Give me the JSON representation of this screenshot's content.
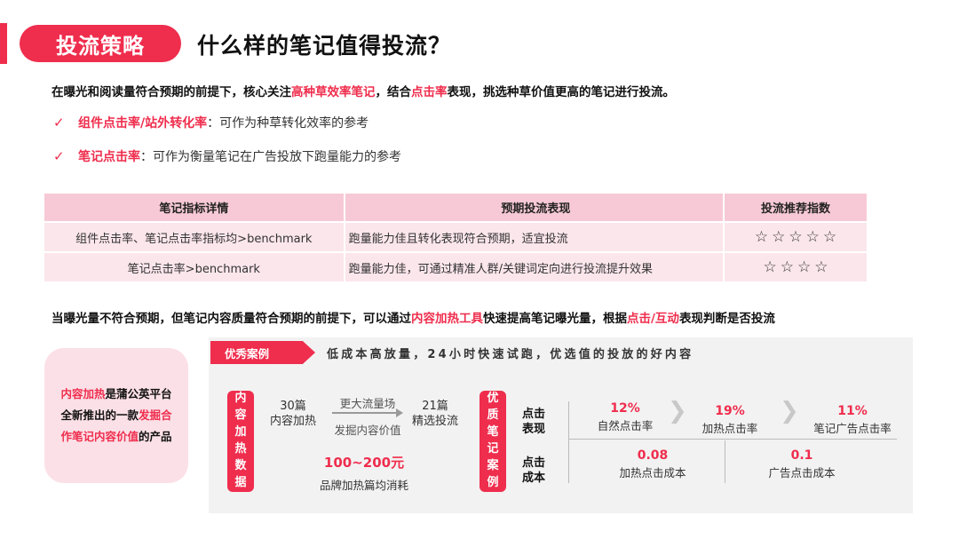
{
  "header": {
    "tag": "投流策略",
    "title": "什么样的笔记值得投流？"
  },
  "intro": {
    "part1": "在曝光和阅读量符合预期的前提下，核心关注",
    "highlight1": "高种草效率笔记",
    "part2": "，结合",
    "highlight2": "点击率",
    "part3": "表现，挑选种草价值更高的笔记进行投流。"
  },
  "checks": [
    {
      "icon": "✓",
      "term": "组件点击率/站外转化率",
      "desc": "：可作为种草转化效率的参考"
    },
    {
      "icon": "✓",
      "term": "笔记点击率",
      "desc": "：可作为衡量笔记在广告投放下跑量能力的参考"
    }
  ],
  "table": {
    "headers": [
      "笔记指标详情",
      "预期投流表现",
      "投流推荐指数"
    ],
    "rows": [
      {
        "metric": "组件点击率、笔记点击率指标均>benchmark",
        "expect": "跑量能力佳且转化表现符合预期，适宜投流",
        "stars": 5
      },
      {
        "metric": "笔记点击率>benchmark",
        "expect": "跑量能力佳，可通过精准人群/关键词定向进行投流提升效果",
        "stars": 4
      }
    ]
  },
  "second_lead": {
    "part1": "当曝光量不符合预期，但笔记内容质量符合预期的前提下，可以通过",
    "highlight1": "内容加热工具",
    "part2": "快速提高笔记曝光量，根据",
    "highlight2": "点击/互动",
    "part3": "表现判断是否投流"
  },
  "side_card": {
    "hl1": "内容加热",
    "t1": "是蒲公英平台",
    "t2": "全新推出的一款",
    "hl2": "发掘合",
    "hl3": "作笔记内容价值",
    "t3": "的产品"
  },
  "case": {
    "tag": "优秀案例",
    "slogan": "低成本高放量，24小时快速试跑，优选值的投放的好内容",
    "heat_label": "内容加热数据",
    "count_from": "30篇",
    "count_from_label": "内容加热",
    "arrow_top": "更大流量场",
    "arrow_bottom": "发掘内容价值",
    "count_to": "21篇",
    "count_to_label": "精选投流",
    "cost_range": "100~200元",
    "cost_label": "品牌加热篇均消耗",
    "quality_label": "优质笔记案例",
    "click_label_1": "点击",
    "click_label_2": "表现",
    "cost_row_label_1": "点击",
    "cost_row_label_2": "成本",
    "rates": [
      {
        "value": "12%",
        "label": "自然点击率"
      },
      {
        "value": "19%",
        "label": "加热点击率"
      },
      {
        "value": "11%",
        "label": "笔记广告点击率"
      }
    ],
    "costs": [
      {
        "value": "0.08",
        "label": "加热点击成本"
      },
      {
        "value": "0.1",
        "label": "广告点击成本"
      }
    ]
  },
  "colors": {
    "accent": "#ef2d4d",
    "table_header": "#f7c9d6",
    "table_row": "#fbe6ec",
    "panel": "#f2f2f2"
  },
  "icons": {
    "check": "check-icon",
    "star": "star-outline-icon",
    "chevron": "chevron-right-icon"
  }
}
